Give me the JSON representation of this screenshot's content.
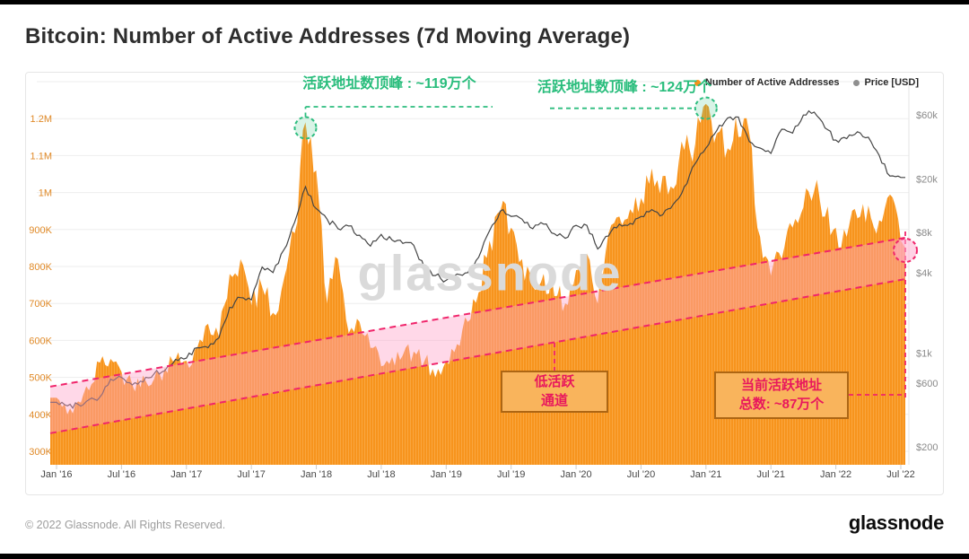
{
  "page": {
    "title": "Bitcoin: Number of Active Addresses (7d Moving Average)"
  },
  "legend": {
    "series": [
      {
        "label": "Number of Active Addresses",
        "color": "#f7931a"
      },
      {
        "label": "Price [USD]",
        "color": "#8f8f8f"
      }
    ]
  },
  "watermark": "glassnode",
  "footer": {
    "copyright": "© 2022 Glassnode. All Rights Reserved.",
    "logo": "glassnode"
  },
  "annotations": {
    "peak_2017": {
      "text": "活跃地址数顶峰 : ~119万个",
      "value_label": "~119万个",
      "month": "Dec 2017",
      "color": "#29bd7c"
    },
    "peak_2021": {
      "text": "活跃地址数顶峰 : ~124万个",
      "value_label": "~124万个",
      "month": "Jan 2021",
      "color": "#29bd7c"
    },
    "low_channel_box": {
      "line1": "低活跃",
      "line2": "通道",
      "color": "#e8175d"
    },
    "current_box": {
      "line1": "当前活跃地址",
      "line2": "总数: ~87万个",
      "color": "#e8175d"
    }
  },
  "chart_data": {
    "type": "area+line",
    "title": "Bitcoin: Number of Active Addresses (7d Moving Average)",
    "x_start": "2016-01",
    "x_end": "2022-07",
    "x_interval": "monthly",
    "x_tick_labels": [
      "Jan '16",
      "Jul '16",
      "Jan '17",
      "Jul '17",
      "Jan '18",
      "Jul '18",
      "Jan '19",
      "Jul '19",
      "Jan '20",
      "Jul '20",
      "Jan '21",
      "Jul '21",
      "Jan '22",
      "Jul '22"
    ],
    "y_axis_left": {
      "series": "Number of Active Addresses",
      "scale": "linear",
      "tick_labels": [
        "300K",
        "400K",
        "500K",
        "600K",
        "700K",
        "800K",
        "900K",
        "1M",
        "1.1M",
        "1.2M"
      ],
      "tick_values_k": [
        300,
        400,
        500,
        600,
        700,
        800,
        900,
        1000,
        1100,
        1200
      ]
    },
    "y_axis_right": {
      "series": "Price [USD]",
      "scale": "log",
      "tick_labels": [
        "$200",
        "$600",
        "$1k",
        "$4k",
        "$8k",
        "$20k",
        "$60k"
      ],
      "tick_values": [
        200,
        600,
        1000,
        4000,
        8000,
        20000,
        60000
      ]
    },
    "grid": "horizontal",
    "legend_position": "top-right",
    "series": [
      {
        "name": "Number of Active Addresses",
        "unit": "thousand addresses (7d MA), monthly approximations",
        "values_k": [
          445,
          400,
          435,
          465,
          540,
          550,
          515,
          480,
          505,
          495,
          525,
          550,
          545,
          580,
          645,
          610,
          780,
          820,
          695,
          745,
          675,
          765,
          890,
          1190,
          1060,
          700,
          820,
          620,
          650,
          580,
          530,
          555,
          560,
          570,
          545,
          500,
          545,
          590,
          650,
          730,
          870,
          950,
          905,
          820,
          745,
          780,
          720,
          700,
          790,
          835,
          700,
          890,
          935,
          955,
          985,
          1065,
          1045,
          1010,
          1115,
          1130,
          1240,
          1160,
          1120,
          1150,
          1160,
          880,
          775,
          820,
          905,
          960,
          1005,
          935,
          905,
          880,
          930,
          965,
          925,
          995,
          870
        ]
      },
      {
        "name": "Price [USD]",
        "unit": "USD, monthly approximations",
        "values": [
          430,
          405,
          415,
          450,
          470,
          640,
          660,
          580,
          610,
          700,
          740,
          900,
          920,
          1100,
          1100,
          1300,
          2200,
          2600,
          2500,
          4400,
          4000,
          5900,
          9500,
          17500,
          12000,
          10000,
          8500,
          8900,
          7600,
          6300,
          7700,
          7000,
          6600,
          6400,
          4300,
          3800,
          3500,
          3900,
          4000,
          5200,
          8200,
          11500,
          10500,
          10000,
          8500,
          9200,
          7800,
          7200,
          9000,
          9000,
          6000,
          7500,
          9200,
          9300,
          10500,
          11800,
          10800,
          13000,
          17500,
          26000,
          34000,
          46000,
          57000,
          58000,
          38000,
          34000,
          31000,
          47000,
          44000,
          60000,
          63000,
          48000,
          39000,
          40000,
          45000,
          41000,
          30000,
          21000,
          20500
        ]
      }
    ],
    "channel": {
      "label": "低活跃通道 (low-activity channel)",
      "upper_k": {
        "start": 475,
        "end": 878
      },
      "lower_k": {
        "start": 349,
        "end": 766
      }
    },
    "highlight_points": [
      {
        "month": "2017-12",
        "value_k": 1190,
        "label": "~119万个"
      },
      {
        "month": "2021-01",
        "value_k": 1240,
        "label": "~124万个"
      },
      {
        "month": "2022-07",
        "value_k": 870,
        "label": "~87万个"
      }
    ]
  }
}
